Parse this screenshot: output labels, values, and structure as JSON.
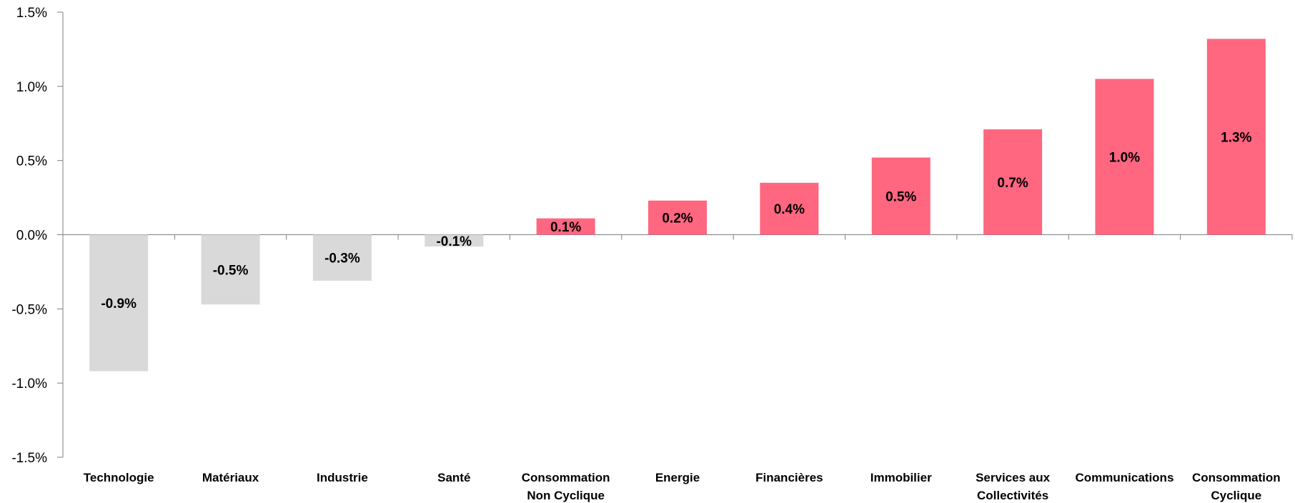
{
  "chart_data": {
    "type": "bar",
    "categories": [
      [
        "Technologie"
      ],
      [
        "Matériaux"
      ],
      [
        "Industrie"
      ],
      [
        "Santé"
      ],
      [
        "Consommation",
        "Non Cyclique"
      ],
      [
        "Energie"
      ],
      [
        "Financières"
      ],
      [
        "Immobilier"
      ],
      [
        "Services aux",
        "Collectivités"
      ],
      [
        "Communications"
      ],
      [
        "Consommation",
        "Cyclique"
      ]
    ],
    "values": [
      -0.92,
      -0.47,
      -0.31,
      -0.08,
      0.11,
      0.23,
      0.35,
      0.52,
      0.71,
      1.05,
      1.32
    ],
    "data_labels": [
      "-0.9%",
      "-0.5%",
      "-0.3%",
      "-0.1%",
      "0.1%",
      "0.2%",
      "0.4%",
      "0.5%",
      "0.7%",
      "1.0%",
      "1.3%"
    ],
    "y_ticks": [
      1.5,
      1.0,
      0.5,
      0.0,
      -0.5,
      -1.0,
      -1.5
    ],
    "y_tick_labels": [
      "1.5%",
      "1.0%",
      "0.5%",
      "0.0%",
      "-0.5%",
      "-1.0%",
      "-1.5%"
    ],
    "ylim": [
      -1.5,
      1.5
    ],
    "title": "",
    "xlabel": "",
    "ylabel": "",
    "grid": false,
    "legend": "none",
    "colors": {
      "positive": "#ff6680",
      "negative": "#d9d9d9",
      "axis": "#7f7f7f"
    }
  }
}
